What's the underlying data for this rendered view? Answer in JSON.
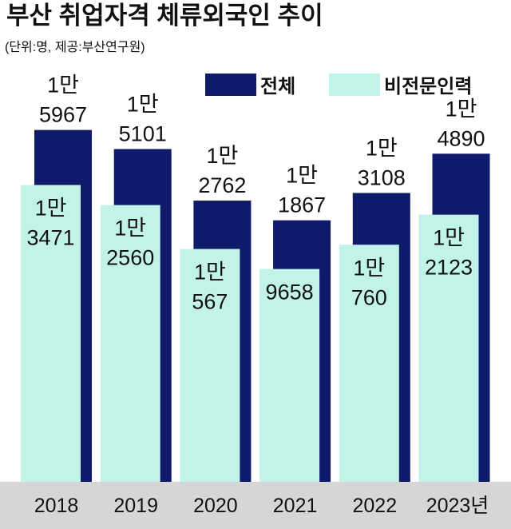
{
  "chart_data": {
    "type": "bar",
    "title": "부산 취업자격 체류외국인 추이",
    "subtitle": "(단위:명, 제공:부산연구원)",
    "categories": [
      "2018",
      "2019",
      "2020",
      "2021",
      "2022",
      "2023년"
    ],
    "series": [
      {
        "name": "전체",
        "values": [
          15967,
          15101,
          12762,
          11867,
          13108,
          14890
        ],
        "labels": [
          [
            "1만",
            "5967"
          ],
          [
            "1만",
            "5101"
          ],
          [
            "1만",
            "2762"
          ],
          [
            "1만",
            "1867"
          ],
          [
            "1만",
            "3108"
          ],
          [
            "1만",
            "4890"
          ]
        ],
        "color": "#101a6b"
      },
      {
        "name": "비전문인력",
        "values": [
          13471,
          12560,
          10567,
          9658,
          10760,
          12123
        ],
        "labels": [
          [
            "1만",
            "3471"
          ],
          [
            "1만",
            "2560"
          ],
          [
            "1만",
            "567"
          ],
          [
            "9658"
          ],
          [
            "1만",
            "760"
          ],
          [
            "1만",
            "2123"
          ]
        ],
        "color": "#c2f3e8"
      }
    ],
    "legend_position": "top-right",
    "grid": false,
    "ylim": [
      0,
      19000
    ]
  },
  "colors": {
    "total": "#101a6b",
    "non_professional": "#c2f3e8",
    "axis_band": "#d6d6d6",
    "text": "#111111"
  }
}
